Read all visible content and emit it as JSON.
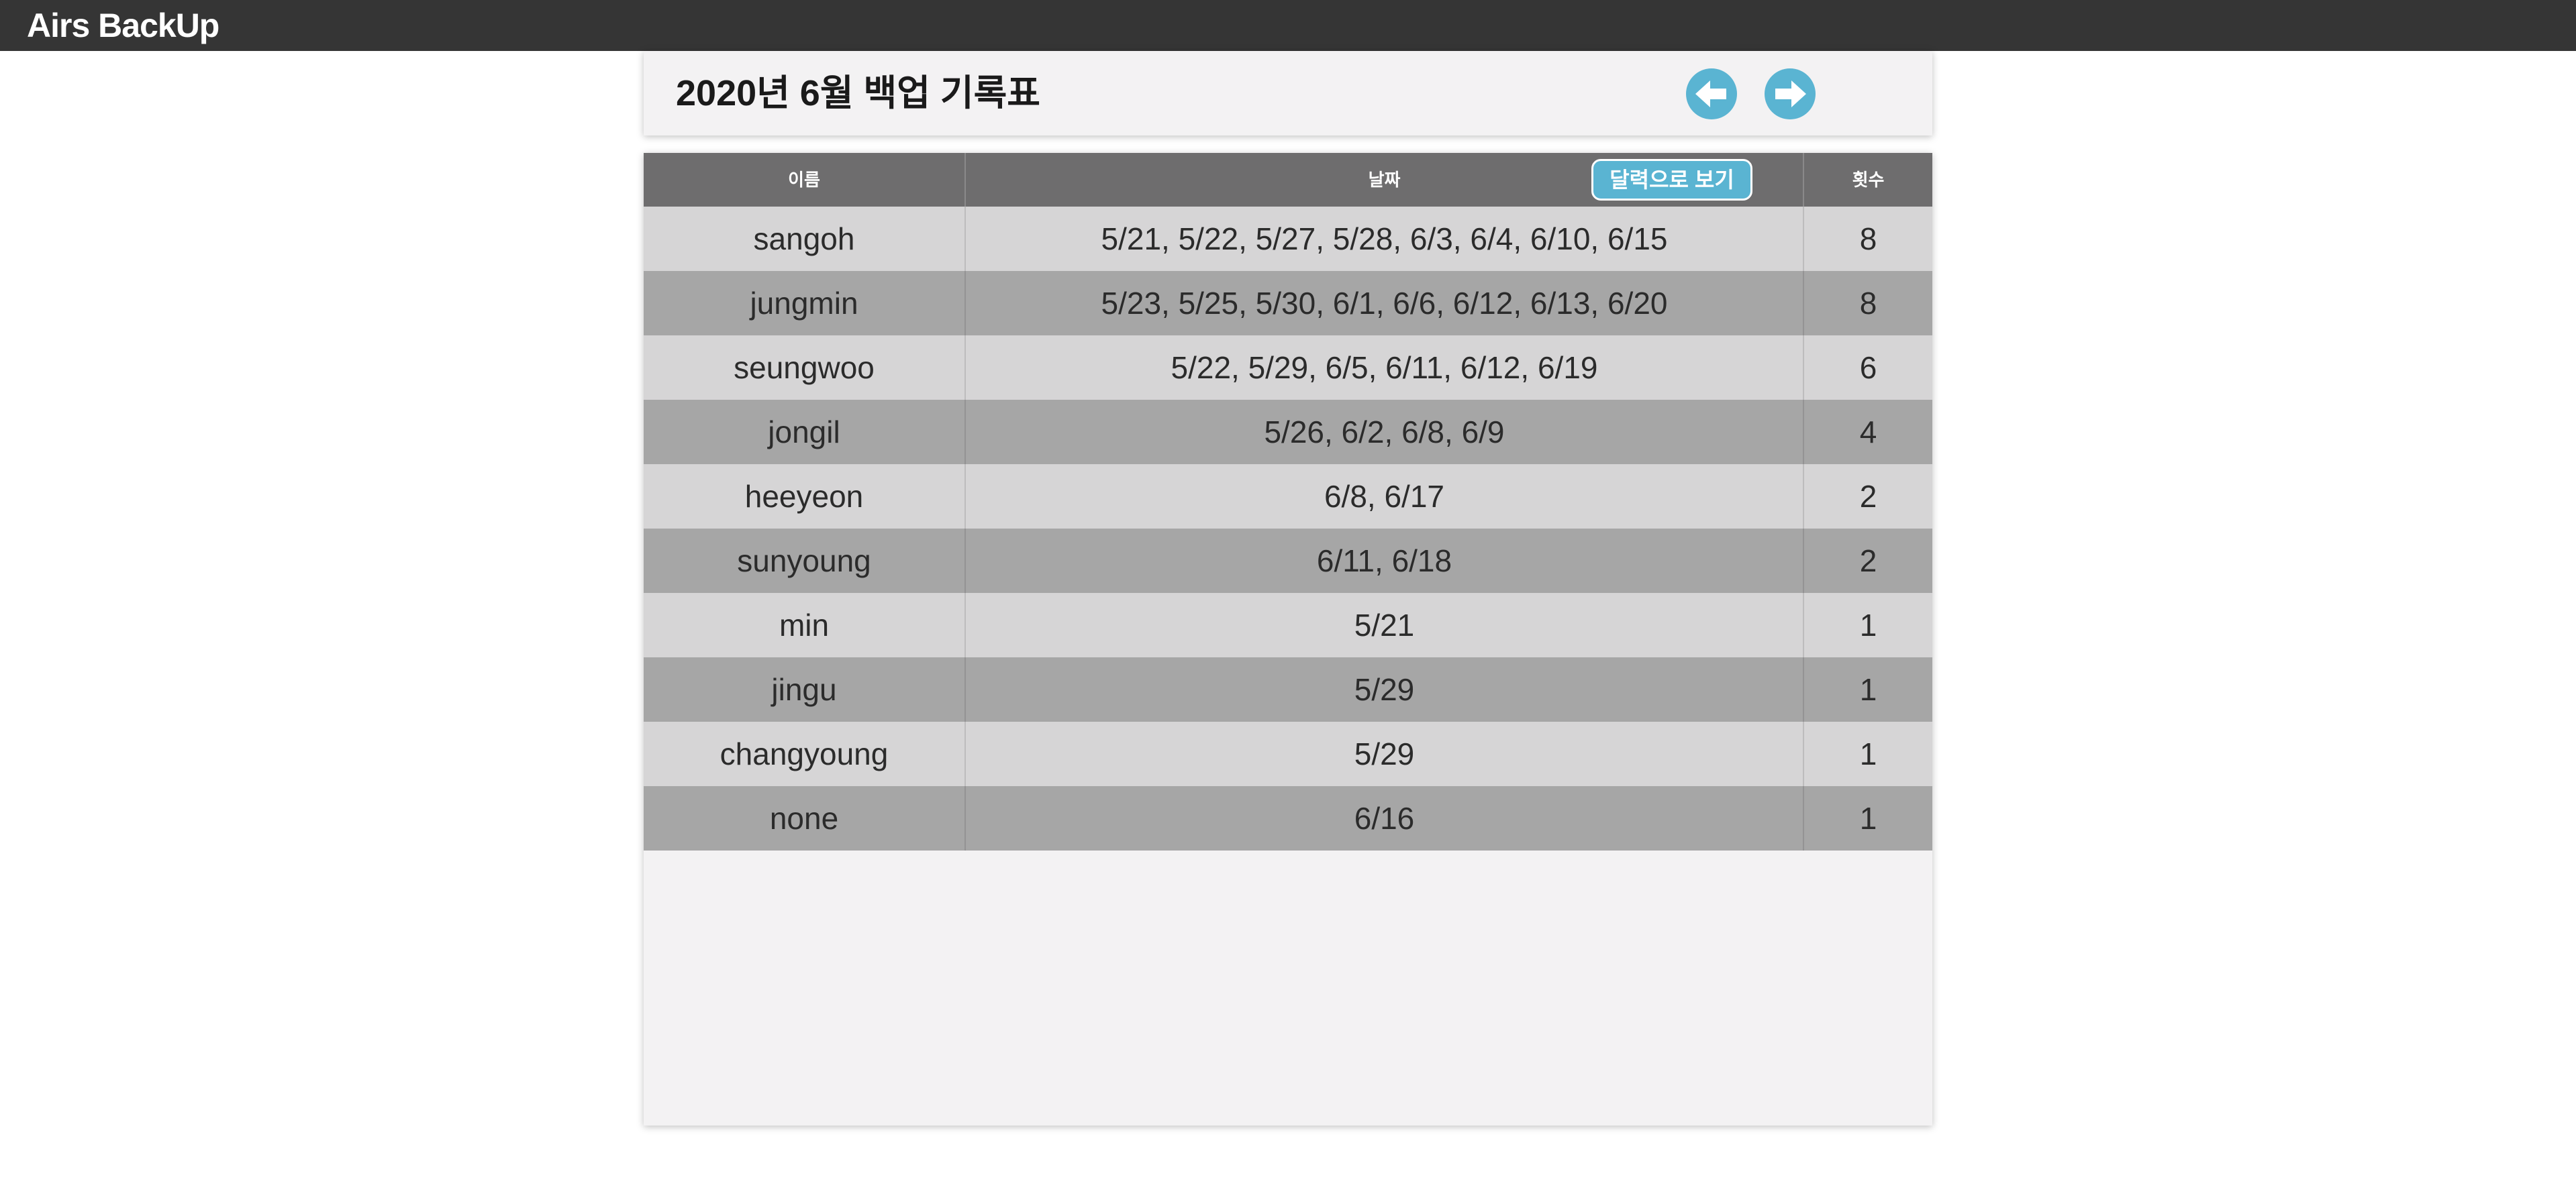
{
  "app": {
    "title": "Airs BackUp"
  },
  "header": {
    "title": "2020년 6월 백업 기록표",
    "prev_icon": "arrow-left-icon",
    "next_icon": "arrow-right-icon"
  },
  "colors": {
    "topbar": "#353535",
    "accent": "#5ab4d2",
    "table_header": "#6e6d6e",
    "row_light": "#d6d5d6",
    "row_dark": "#a6a6a6"
  },
  "table": {
    "columns": {
      "name": "이름",
      "dates": "날짜",
      "count": "횟수"
    },
    "calendar_button": "달력으로 보기",
    "rows": [
      {
        "name": "sangoh",
        "dates": "5/21, 5/22, 5/27, 5/28, 6/3, 6/4, 6/10, 6/15",
        "count": "8"
      },
      {
        "name": "jungmin",
        "dates": "5/23, 5/25, 5/30, 6/1, 6/6, 6/12, 6/13, 6/20",
        "count": "8"
      },
      {
        "name": "seungwoo",
        "dates": "5/22, 5/29, 6/5, 6/11, 6/12, 6/19",
        "count": "6"
      },
      {
        "name": "jongil",
        "dates": "5/26, 6/2, 6/8, 6/9",
        "count": "4"
      },
      {
        "name": "heeyeon",
        "dates": "6/8, 6/17",
        "count": "2"
      },
      {
        "name": "sunyoung",
        "dates": "6/11, 6/18",
        "count": "2"
      },
      {
        "name": "min",
        "dates": "5/21",
        "count": "1"
      },
      {
        "name": "jingu",
        "dates": "5/29",
        "count": "1"
      },
      {
        "name": "changyoung",
        "dates": "5/29",
        "count": "1"
      },
      {
        "name": "none",
        "dates": "6/16",
        "count": "1"
      }
    ]
  }
}
